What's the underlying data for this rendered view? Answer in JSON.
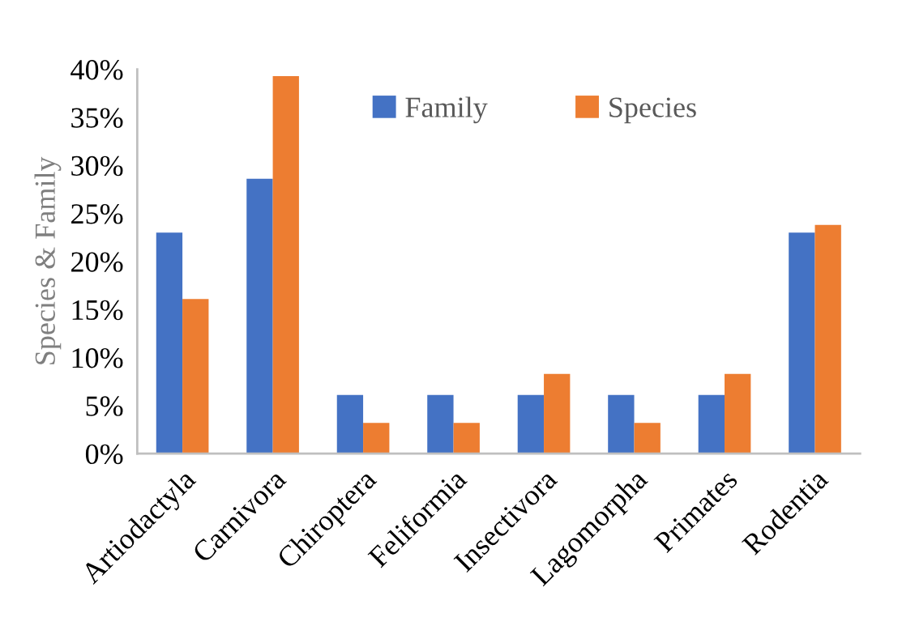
{
  "chart_data": {
    "type": "bar",
    "ylabel": "Species & Family",
    "categories": [
      "Artiodactyla",
      "Carnivora",
      "Chiroptera",
      "Feliformia",
      "Insectivora",
      "Lagomorpha",
      "Primates",
      "Rodentia"
    ],
    "series": [
      {
        "name": "Family",
        "color": "#4472c4",
        "values": [
          23.0,
          28.6,
          6.1,
          6.1,
          6.1,
          6.1,
          6.1,
          23.0
        ]
      },
      {
        "name": "Species",
        "color": "#ed7d31",
        "values": [
          16.1,
          39.3,
          3.2,
          3.2,
          8.3,
          3.2,
          8.3,
          23.8
        ]
      }
    ],
    "ylim": [
      0,
      40
    ],
    "yticks": [
      {
        "value": 0,
        "label": "0%"
      },
      {
        "value": 5,
        "label": "5%"
      },
      {
        "value": 10,
        "label": "10%"
      },
      {
        "value": 15,
        "label": "15%"
      },
      {
        "value": 20,
        "label": "20%"
      },
      {
        "value": 25,
        "label": "25%"
      },
      {
        "value": 30,
        "label": "30%"
      },
      {
        "value": 35,
        "label": "35%"
      },
      {
        "value": 40,
        "label": "40%"
      }
    ],
    "grid": false,
    "legend": "top"
  }
}
